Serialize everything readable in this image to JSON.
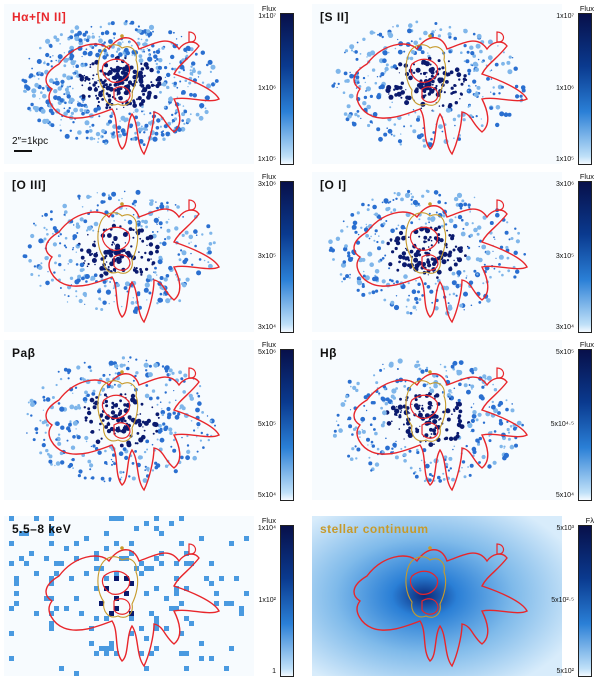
{
  "panels": [
    {
      "label": "Hα+[N II]",
      "label_color": "#e8262b",
      "scale": "2″=1kpc"
    },
    {
      "label": "[S II]",
      "label_color": "#111111"
    },
    {
      "label": "[O III]",
      "label_color": "#111111"
    },
    {
      "label": "[O I]",
      "label_color": "#111111"
    },
    {
      "label": "Paβ",
      "label_color": "#111111"
    },
    {
      "label": "Hβ",
      "label_color": "#111111"
    },
    {
      "label": "5.5–8 keV",
      "label_color": "#111111"
    },
    {
      "label": "stellar continuum",
      "label_color": "#c69a2b"
    }
  ],
  "colorbars": [
    {
      "title": "Flux",
      "top": "1x10⁷",
      "mid": "1x10⁶",
      "bottom": "1x10⁵"
    },
    {
      "title": "Flux",
      "top": "1x10⁷",
      "mid": "1x10⁶",
      "bottom": "1x10⁵"
    },
    {
      "title": "Flux",
      "top": "3x10⁶",
      "mid": "3x10⁵",
      "bottom": "3x10⁴"
    },
    {
      "title": "Flux",
      "top": "3x10⁶",
      "mid": "3x10⁵",
      "bottom": "3x10⁴"
    },
    {
      "title": "Flux",
      "top": "5x10⁶",
      "mid": "5x10⁵",
      "bottom": "5x10⁴"
    },
    {
      "title": "Flux",
      "top": "5x10⁵",
      "mid": "5x10⁴·⁵",
      "bottom": "5x10⁴"
    },
    {
      "title": "Flux",
      "top": "1x10⁴",
      "mid": "1x10²",
      "bottom": "1"
    },
    {
      "title": "Fλ",
      "top": "5x10³",
      "mid": "5x10²·⁵",
      "bottom": "5x10²"
    }
  ],
  "colors": {
    "contour_red": "#e8262b",
    "contour_gold": "#c69a2b",
    "emission_dark": "#0a1a6e",
    "emission_mid": "#2a6fd0"
  }
}
